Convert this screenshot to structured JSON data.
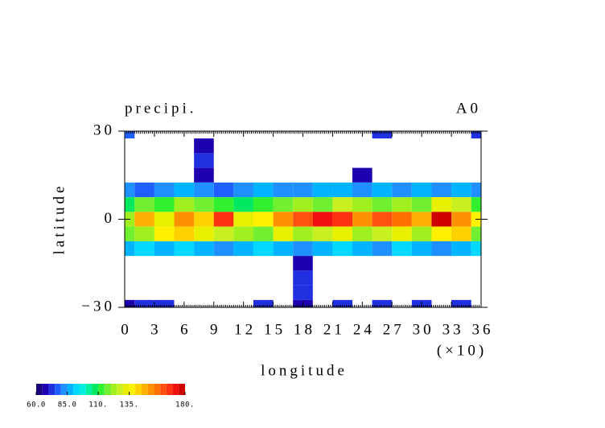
{
  "chart_data": {
    "type": "contourf",
    "title": "precipi.",
    "annotation": "A0",
    "xlabel": "longitude",
    "ylabel": "latitude",
    "x_unit": "(×10)",
    "lon": [
      0,
      2,
      4,
      6,
      8,
      10,
      12,
      14,
      16,
      18,
      20,
      22,
      24,
      26,
      28,
      30,
      32,
      34,
      36
    ],
    "lat": [
      30,
      25,
      20,
      15,
      10,
      5,
      0,
      -5,
      -10,
      -15,
      -20,
      -25,
      -30
    ],
    "z": [
      [
        75,
        40,
        40,
        40,
        40,
        40,
        40,
        40,
        40,
        40,
        40,
        40,
        40,
        70,
        40,
        40,
        40,
        40,
        70
      ],
      [
        40,
        40,
        40,
        40,
        65,
        40,
        40,
        40,
        40,
        40,
        40,
        40,
        40,
        40,
        40,
        40,
        40,
        40,
        40
      ],
      [
        40,
        40,
        40,
        40,
        70,
        40,
        40,
        40,
        40,
        40,
        40,
        40,
        40,
        40,
        40,
        40,
        40,
        40,
        40
      ],
      [
        40,
        40,
        40,
        40,
        65,
        40,
        40,
        40,
        40,
        40,
        40,
        40,
        65,
        40,
        40,
        40,
        40,
        40,
        40
      ],
      [
        80,
        75,
        80,
        85,
        80,
        75,
        80,
        85,
        80,
        80,
        85,
        85,
        80,
        85,
        80,
        85,
        80,
        85,
        80
      ],
      [
        105,
        115,
        110,
        120,
        115,
        110,
        105,
        110,
        115,
        120,
        115,
        125,
        120,
        115,
        120,
        115,
        130,
        125,
        110
      ],
      [
        120,
        145,
        130,
        150,
        140,
        165,
        130,
        135,
        150,
        160,
        170,
        165,
        150,
        160,
        155,
        145,
        175,
        150,
        135
      ],
      [
        115,
        120,
        135,
        140,
        130,
        125,
        120,
        115,
        130,
        120,
        125,
        130,
        120,
        125,
        130,
        120,
        135,
        140,
        115
      ],
      [
        85,
        90,
        85,
        90,
        85,
        80,
        85,
        90,
        85,
        80,
        85,
        90,
        85,
        80,
        90,
        85,
        80,
        85,
        90
      ],
      [
        40,
        40,
        40,
        40,
        40,
        40,
        40,
        40,
        40,
        65,
        40,
        40,
        40,
        40,
        40,
        40,
        40,
        40,
        40
      ],
      [
        40,
        40,
        40,
        40,
        40,
        40,
        40,
        40,
        40,
        70,
        40,
        40,
        40,
        40,
        40,
        40,
        40,
        40,
        40
      ],
      [
        40,
        40,
        40,
        40,
        40,
        40,
        40,
        40,
        40,
        70,
        40,
        40,
        40,
        40,
        40,
        40,
        40,
        40,
        40
      ],
      [
        65,
        70,
        70,
        40,
        40,
        40,
        40,
        70,
        40,
        65,
        40,
        70,
        40,
        70,
        40,
        70,
        40,
        70,
        40
      ]
    ],
    "xlim": [
      0,
      36
    ],
    "ylim": [
      -30,
      30
    ],
    "xticks": [
      0,
      3,
      6,
      9,
      12,
      15,
      18,
      21,
      24,
      27,
      30,
      33,
      36
    ],
    "yticks": [
      {
        "value": -30,
        "label": "−30"
      },
      0,
      30
    ],
    "colorbar": {
      "levels": [
        60,
        65,
        70,
        75,
        80,
        85,
        90,
        95,
        100,
        105,
        110,
        115,
        120,
        125,
        130,
        135,
        140,
        145,
        150,
        155,
        160,
        165,
        170,
        175,
        180
      ],
      "colors": [
        "#1a007a",
        "#1e00b0",
        "#2030e0",
        "#1f5fff",
        "#1e90ff",
        "#00b4ff",
        "#00d8ff",
        "#00f0e0",
        "#00f0a0",
        "#00e860",
        "#30f030",
        "#70f030",
        "#a0f020",
        "#c8f020",
        "#e8f000",
        "#fff000",
        "#ffd000",
        "#ffb000",
        "#ff9000",
        "#ff7000",
        "#ff5010",
        "#ff3010",
        "#f01010",
        "#d00000"
      ],
      "ticks": [
        {
          "value": 60,
          "label": "60.0"
        },
        {
          "value": 85,
          "label": "85.0"
        },
        {
          "value": 110,
          "label": "110."
        },
        {
          "value": 135,
          "label": "135."
        },
        {
          "value": 180,
          "label": "180."
        }
      ]
    }
  }
}
